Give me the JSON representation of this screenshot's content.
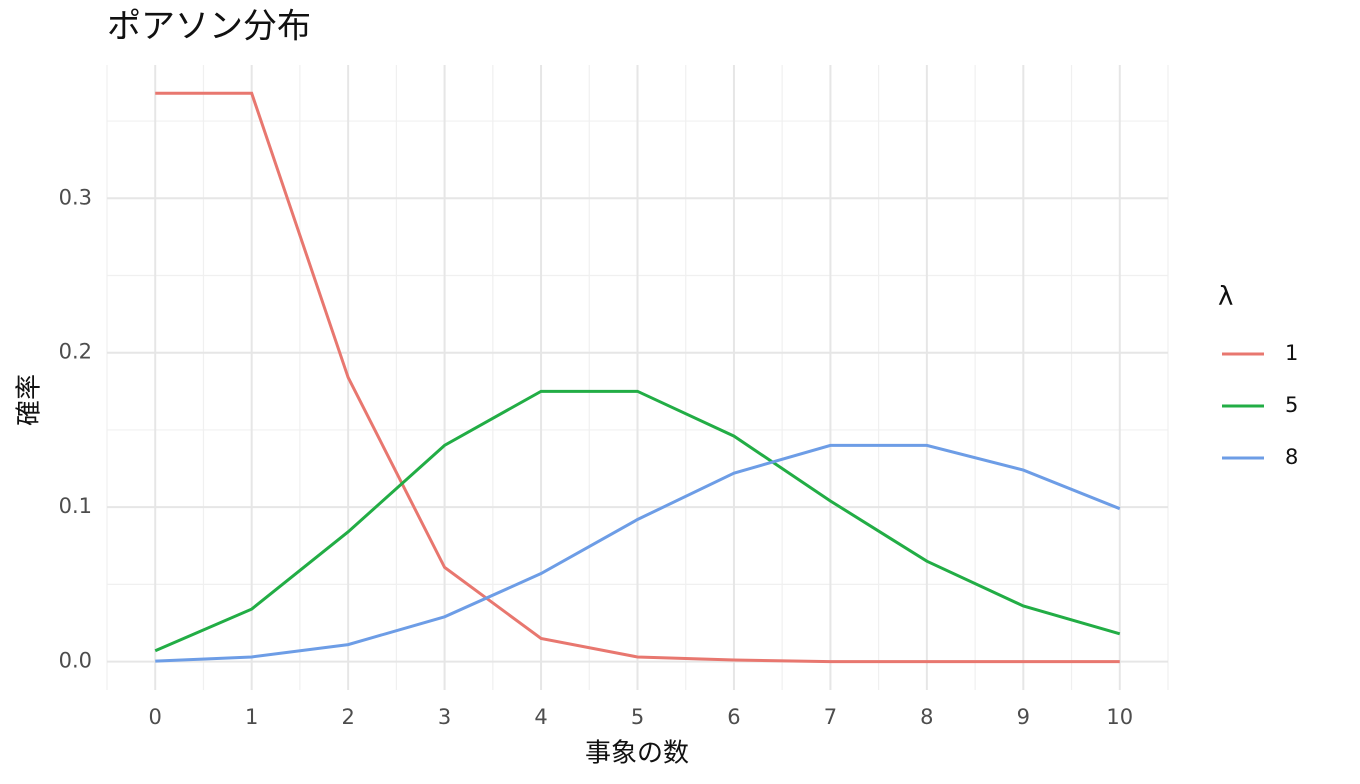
{
  "chart_data": {
    "type": "line",
    "title": "ポアソン分布",
    "x_label": "事象の数",
    "y_label": "確率",
    "x": [
      0,
      1,
      2,
      3,
      4,
      5,
      6,
      7,
      8,
      9,
      10
    ],
    "series": [
      {
        "name": "1",
        "color": "#e8776f",
        "values": [
          0.368,
          0.368,
          0.184,
          0.061,
          0.015,
          0.003,
          0.001,
          0,
          0,
          0,
          0
        ]
      },
      {
        "name": "5",
        "color": "#22ad45",
        "values": [
          0.007,
          0.034,
          0.084,
          0.14,
          0.175,
          0.175,
          0.146,
          0.104,
          0.065,
          0.036,
          0.018
        ]
      },
      {
        "name": "8",
        "color": "#6d9de6",
        "values": [
          0.0003,
          0.003,
          0.011,
          0.029,
          0.057,
          0.092,
          0.122,
          0.14,
          0.14,
          0.124,
          0.099
        ]
      }
    ],
    "legend_title": "λ",
    "xlim": [
      -0.5,
      10.5
    ],
    "xticks": [
      0,
      1,
      2,
      3,
      4,
      5,
      6,
      7,
      8,
      9,
      10
    ],
    "ylim": [
      -0.0184,
      0.3863
    ],
    "yticks": [
      {
        "value": 0,
        "label": "0.0"
      },
      0.1,
      0.2,
      0.3
    ],
    "grid": true,
    "minor_grid": true,
    "legend": "right"
  }
}
